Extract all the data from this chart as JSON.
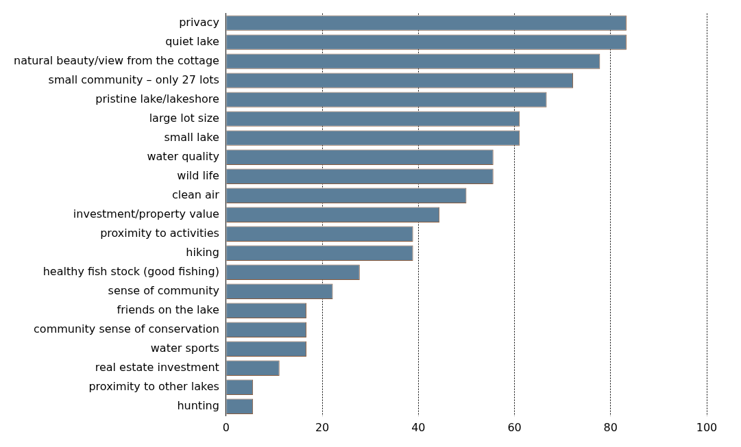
{
  "chart_data": {
    "type": "bar",
    "orientation": "horizontal",
    "categories": [
      "privacy",
      "quiet lake",
      "natural beauty/view from the cottage",
      "small community – only 27 lots",
      "pristine lake/lakeshore",
      "large lot size",
      "small lake",
      "water quality",
      "wild life",
      "clean air",
      "investment/property value",
      "proximity to activities",
      "hiking",
      "healthy fish stock (good fishing)",
      "sense of community",
      "friends on the lake",
      "community sense of conservation",
      "water sports",
      "real estate investment",
      "proximity to other lakes",
      "hunting"
    ],
    "values": [
      83.3,
      83.3,
      77.8,
      72.2,
      66.7,
      61.1,
      61.1,
      55.6,
      55.6,
      50,
      44.4,
      38.9,
      38.9,
      27.8,
      22.2,
      16.7,
      16.7,
      16.7,
      11.1,
      5.6,
      5.6
    ],
    "color": "#5b7e99",
    "xlim": [
      0,
      100
    ],
    "xticks": [
      0,
      20,
      40,
      60,
      80,
      100
    ],
    "grid": "x",
    "legend": false
  }
}
